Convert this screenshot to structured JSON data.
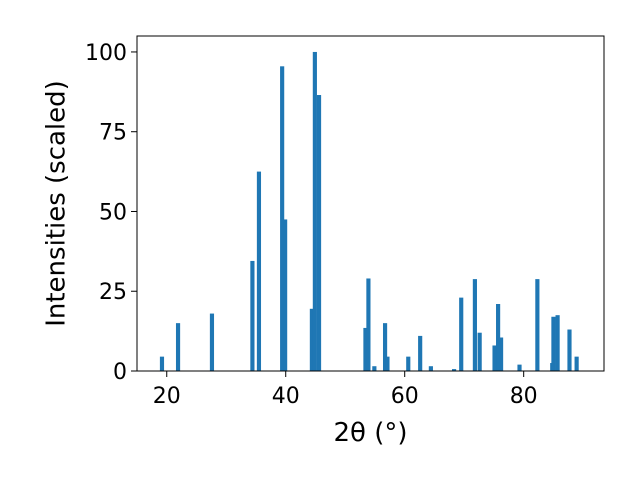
{
  "chart_data": {
    "type": "bar",
    "title": "",
    "xlabel": "2θ (°)",
    "ylabel": "Intensities (scaled)",
    "xlim": [
      15,
      93.5
    ],
    "ylim": [
      0,
      105
    ],
    "xticks": [
      20,
      40,
      60,
      80
    ],
    "yticks": [
      0,
      25,
      50,
      75,
      100
    ],
    "grid": false,
    "bar_color": "#1f77b4",
    "bar_width": 0.7,
    "x": [
      19.2,
      21.9,
      27.6,
      34.4,
      35.5,
      39.4,
      39.9,
      44.4,
      44.9,
      45.6,
      53.4,
      53.9,
      54.9,
      56.7,
      57.1,
      60.6,
      62.6,
      64.4,
      68.3,
      69.5,
      71.8,
      72.6,
      75.1,
      75.7,
      76.2,
      79.3,
      82.3,
      84.8,
      85.0,
      85.7,
      87.7,
      88.9
    ],
    "values": [
      4.5,
      15,
      18,
      34.5,
      62.5,
      95.5,
      47.5,
      19.5,
      100,
      86.5,
      13.5,
      29,
      1.5,
      15,
      4.5,
      4.5,
      11,
      1.5,
      0.6,
      23,
      28.8,
      12,
      8,
      21,
      10.5,
      2,
      28.8,
      2.5,
      17,
      17.5,
      13,
      4.5
    ]
  }
}
